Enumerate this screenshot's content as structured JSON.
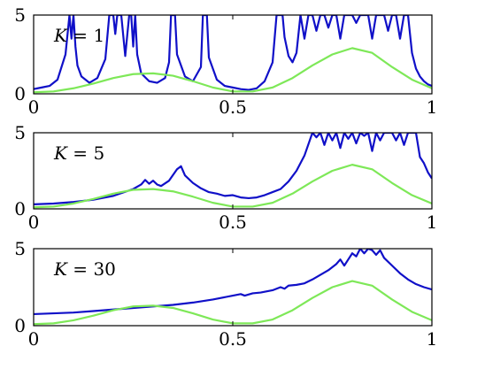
{
  "chart_data": [
    {
      "type": "line",
      "label": "K = 1",
      "label_parts": {
        "var": "K",
        "eq": " = ",
        "num": "1"
      },
      "xlim": [
        0,
        1
      ],
      "ylim": [
        0,
        5
      ],
      "xticks": [
        "0",
        "0.5",
        "1"
      ],
      "yticks": [
        "0",
        "5"
      ],
      "grid": false,
      "series": [
        {
          "color": "#1010c8",
          "x": [
            0,
            0.02,
            0.04,
            0.06,
            0.08,
            0.09,
            0.095,
            0.1,
            0.105,
            0.11,
            0.12,
            0.14,
            0.16,
            0.18,
            0.19,
            0.2,
            0.205,
            0.21,
            0.215,
            0.22,
            0.23,
            0.24,
            0.245,
            0.25,
            0.255,
            0.26,
            0.27,
            0.29,
            0.31,
            0.33,
            0.34,
            0.345,
            0.35,
            0.355,
            0.36,
            0.38,
            0.4,
            0.42,
            0.425,
            0.43,
            0.435,
            0.44,
            0.46,
            0.48,
            0.5,
            0.52,
            0.54,
            0.56,
            0.58,
            0.6,
            0.61,
            0.615,
            0.62,
            0.625,
            0.63,
            0.64,
            0.65,
            0.66,
            0.67,
            0.68,
            0.69,
            0.7,
            0.71,
            0.72,
            0.73,
            0.74,
            0.75,
            0.76,
            0.77,
            0.78,
            0.79,
            0.8,
            0.81,
            0.82,
            0.83,
            0.84,
            0.85,
            0.86,
            0.87,
            0.88,
            0.89,
            0.9,
            0.91,
            0.92,
            0.93,
            0.94,
            0.95,
            0.96,
            0.97,
            0.98,
            0.99,
            1.0
          ],
          "y": [
            0.3,
            0.4,
            0.5,
            0.9,
            2.5,
            5,
            3.5,
            5,
            3,
            1.8,
            1.1,
            0.7,
            1.0,
            2.2,
            5,
            5,
            3.8,
            5,
            5,
            5,
            2.4,
            5,
            5,
            3,
            5,
            2.5,
            1.3,
            0.8,
            0.7,
            1.0,
            2.0,
            5,
            5,
            5,
            2.5,
            1.1,
            0.8,
            1.7,
            5,
            5,
            5,
            2.3,
            0.9,
            0.5,
            0.4,
            0.3,
            0.25,
            0.35,
            0.8,
            2.0,
            5,
            5,
            5,
            5,
            3.6,
            2.4,
            2.0,
            2.6,
            5,
            3.5,
            5,
            5,
            4.0,
            5,
            5,
            4.2,
            5,
            5,
            3.5,
            5,
            5,
            5,
            4.5,
            5,
            5,
            5,
            3.5,
            5,
            5,
            5,
            4.0,
            5,
            5,
            3.5,
            5,
            5,
            2.6,
            1.6,
            1.1,
            0.8,
            0.6,
            0.5
          ]
        },
        {
          "color": "#7ee858",
          "x": [
            0,
            0.05,
            0.1,
            0.15,
            0.2,
            0.25,
            0.3,
            0.35,
            0.4,
            0.45,
            0.5,
            0.55,
            0.6,
            0.65,
            0.7,
            0.75,
            0.8,
            0.85,
            0.9,
            0.95,
            1.0
          ],
          "y": [
            0.1,
            0.15,
            0.35,
            0.65,
            1.0,
            1.25,
            1.3,
            1.15,
            0.8,
            0.4,
            0.15,
            0.15,
            0.4,
            1.0,
            1.8,
            2.5,
            2.9,
            2.6,
            1.7,
            0.9,
            0.35
          ]
        }
      ]
    },
    {
      "type": "line",
      "label": "K = 5",
      "label_parts": {
        "var": "K",
        "eq": " = ",
        "num": "5"
      },
      "xlim": [
        0,
        1
      ],
      "ylim": [
        0,
        5
      ],
      "xticks": [
        "0",
        "0.5",
        "1"
      ],
      "yticks": [
        "0",
        "5"
      ],
      "grid": false,
      "series": [
        {
          "color": "#1010c8",
          "x": [
            0,
            0.05,
            0.1,
            0.15,
            0.2,
            0.25,
            0.27,
            0.28,
            0.29,
            0.3,
            0.31,
            0.32,
            0.34,
            0.36,
            0.37,
            0.38,
            0.4,
            0.42,
            0.44,
            0.46,
            0.48,
            0.5,
            0.52,
            0.54,
            0.56,
            0.58,
            0.6,
            0.62,
            0.64,
            0.66,
            0.68,
            0.7,
            0.71,
            0.72,
            0.73,
            0.74,
            0.75,
            0.76,
            0.77,
            0.78,
            0.79,
            0.8,
            0.81,
            0.82,
            0.83,
            0.84,
            0.85,
            0.86,
            0.87,
            0.88,
            0.89,
            0.9,
            0.91,
            0.92,
            0.93,
            0.94,
            0.95,
            0.96,
            0.97,
            0.98,
            0.99,
            1.0
          ],
          "y": [
            0.3,
            0.35,
            0.45,
            0.6,
            0.85,
            1.3,
            1.6,
            1.9,
            1.65,
            1.85,
            1.6,
            1.5,
            1.85,
            2.6,
            2.8,
            2.2,
            1.7,
            1.35,
            1.1,
            1.0,
            0.85,
            0.9,
            0.75,
            0.7,
            0.75,
            0.9,
            1.1,
            1.3,
            1.8,
            2.5,
            3.5,
            5,
            4.7,
            5,
            4.2,
            5,
            4.5,
            5,
            4.0,
            5,
            4.6,
            5,
            4.3,
            5,
            4.8,
            5,
            3.8,
            5,
            4.5,
            5,
            5,
            5,
            4.5,
            5,
            4.2,
            5,
            5,
            5,
            3.4,
            3.0,
            2.4,
            2.0
          ]
        },
        {
          "color": "#7ee858",
          "x": [
            0,
            0.05,
            0.1,
            0.15,
            0.2,
            0.25,
            0.3,
            0.35,
            0.4,
            0.45,
            0.5,
            0.55,
            0.6,
            0.65,
            0.7,
            0.75,
            0.8,
            0.85,
            0.9,
            0.95,
            1.0
          ],
          "y": [
            0.1,
            0.15,
            0.35,
            0.65,
            1.0,
            1.25,
            1.3,
            1.15,
            0.8,
            0.4,
            0.15,
            0.15,
            0.4,
            1.0,
            1.8,
            2.5,
            2.9,
            2.6,
            1.7,
            0.9,
            0.35
          ]
        }
      ]
    },
    {
      "type": "line",
      "label": "K = 30",
      "label_parts": {
        "var": "K",
        "eq": " = ",
        "num": "30"
      },
      "xlim": [
        0,
        1
      ],
      "ylim": [
        0,
        5
      ],
      "xticks": [
        "0",
        "0.5",
        "1"
      ],
      "yticks": [
        "0",
        "5"
      ],
      "grid": false,
      "series": [
        {
          "color": "#1010c8",
          "x": [
            0,
            0.05,
            0.1,
            0.15,
            0.2,
            0.25,
            0.3,
            0.35,
            0.4,
            0.45,
            0.5,
            0.52,
            0.53,
            0.55,
            0.57,
            0.6,
            0.62,
            0.63,
            0.64,
            0.66,
            0.68,
            0.7,
            0.72,
            0.74,
            0.76,
            0.77,
            0.78,
            0.79,
            0.8,
            0.81,
            0.82,
            0.83,
            0.84,
            0.85,
            0.86,
            0.87,
            0.88,
            0.9,
            0.92,
            0.94,
            0.96,
            0.98,
            1.0
          ],
          "y": [
            0.75,
            0.8,
            0.85,
            0.95,
            1.05,
            1.15,
            1.25,
            1.35,
            1.5,
            1.7,
            1.95,
            2.05,
            1.95,
            2.1,
            2.15,
            2.3,
            2.5,
            2.4,
            2.6,
            2.65,
            2.75,
            3.0,
            3.3,
            3.6,
            4.0,
            4.3,
            3.9,
            4.3,
            4.7,
            4.5,
            5.0,
            4.7,
            5.0,
            4.9,
            4.6,
            4.9,
            4.4,
            3.9,
            3.4,
            3.0,
            2.7,
            2.5,
            2.35
          ]
        },
        {
          "color": "#7ee858",
          "x": [
            0,
            0.05,
            0.1,
            0.15,
            0.2,
            0.25,
            0.3,
            0.35,
            0.4,
            0.45,
            0.5,
            0.55,
            0.6,
            0.65,
            0.7,
            0.75,
            0.8,
            0.85,
            0.9,
            0.95,
            1.0
          ],
          "y": [
            0.1,
            0.15,
            0.35,
            0.65,
            1.0,
            1.25,
            1.3,
            1.15,
            0.8,
            0.4,
            0.15,
            0.15,
            0.4,
            1.0,
            1.8,
            2.5,
            2.9,
            2.6,
            1.7,
            0.9,
            0.35
          ]
        }
      ]
    }
  ]
}
